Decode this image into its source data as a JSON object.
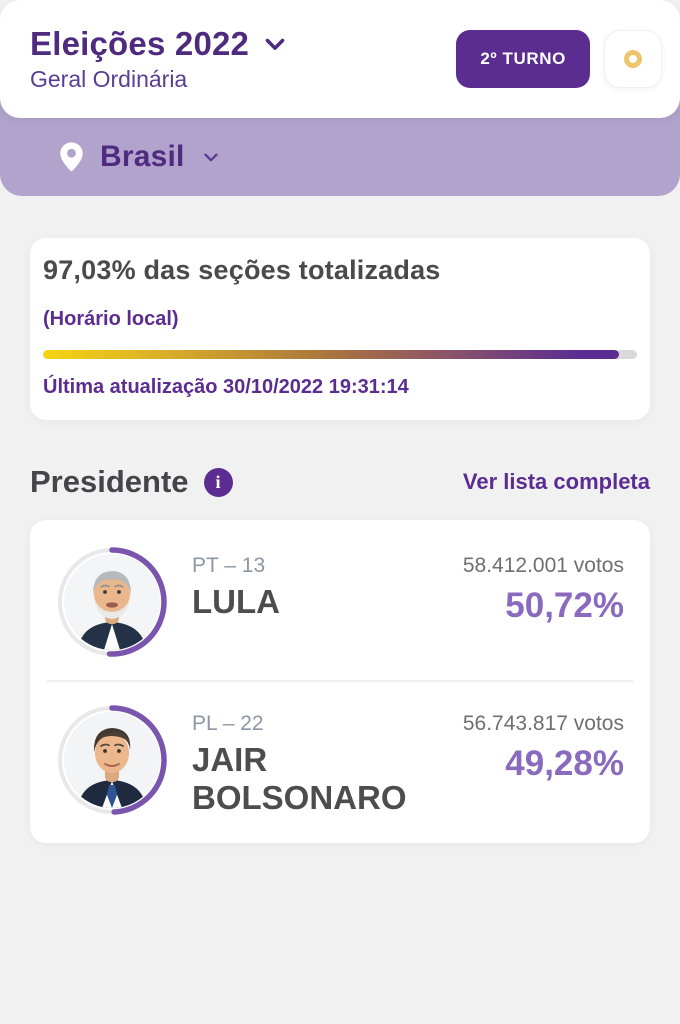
{
  "theme": {
    "brand_purple": "#5b2d90",
    "title_purple": "#4f2b80",
    "lavender": "#b1a3cc",
    "percent_purple": "#8a6abf",
    "arc_purple": "#7a55ae",
    "gold": "#eec56a",
    "dark_text": "#4a4a4c",
    "muted_text": "#6f6f73",
    "party_text": "#8d96a4",
    "page_bg": "#f1f1f2"
  },
  "header": {
    "title": "Eleições 2022",
    "subtitle": "Geral Ordinária",
    "round_badge": "2º TURNO"
  },
  "location": {
    "label": "Brasil"
  },
  "status": {
    "sections_line": "97,03% das seções totalizadas",
    "sections_percent": 97.03,
    "timezone_note": "(Horário local)",
    "last_update": "Última atualização 30/10/2022 19:31:14"
  },
  "results": {
    "section_title": "Presidente",
    "view_full_list": "Ver lista completa",
    "candidates": [
      {
        "party_number": "PT – 13",
        "name": "LULA",
        "votes": "58.412.001 votos",
        "percent_label": "50,72%",
        "percent": 50.72
      },
      {
        "party_number": "PL – 22",
        "name": "JAIR BOLSONARO",
        "votes": "56.743.817 votos",
        "percent_label": "49,28%",
        "percent": 49.28
      }
    ]
  },
  "icons": {
    "info_glyph": "i",
    "location": "map-pin",
    "dropdown": "chevron-down",
    "loading": "gold-ring"
  }
}
